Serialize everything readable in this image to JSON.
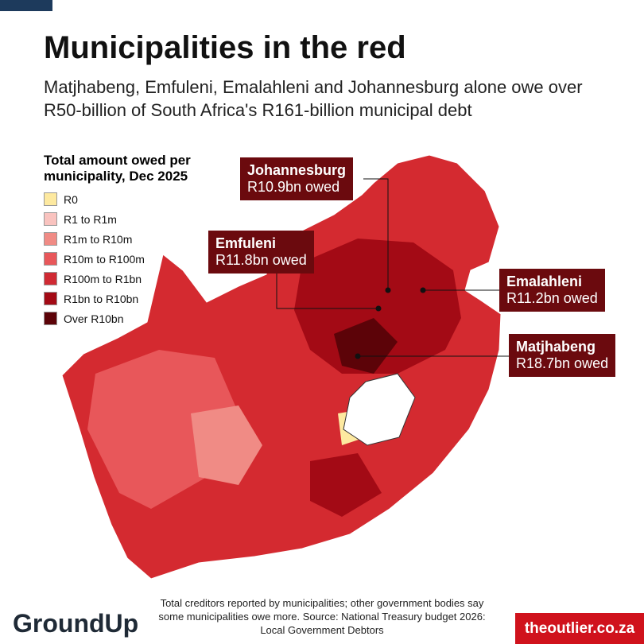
{
  "header": {
    "title": "Municipalities in the red",
    "subtitle": "Matjhabeng, Emfuleni, Emalahleni and Johannesburg alone owe over R50-billion of South Africa's R161-billion municipal debt"
  },
  "legend": {
    "title": "Total amount owed per municipality, Dec 2025",
    "items": [
      {
        "label": "R0",
        "color": "#fde9a0"
      },
      {
        "label": "R1 to R1m",
        "color": "#f9c3bf"
      },
      {
        "label": "R1m to R10m",
        "color": "#f08b85"
      },
      {
        "label": "R10m to R100m",
        "color": "#e8575a"
      },
      {
        "label": "R100m to R1bn",
        "color": "#d02a33"
      },
      {
        "label": "R1bn to R10bn",
        "color": "#a30a15"
      },
      {
        "label": "Over R10bn",
        "color": "#5c0308"
      }
    ]
  },
  "callouts": [
    {
      "name": "Johannesburg",
      "amount": "R10.9bn owed"
    },
    {
      "name": "Emfuleni",
      "amount": "R11.8bn owed"
    },
    {
      "name": "Emalahleni",
      "amount": "R11.2bn owed"
    },
    {
      "name": "Matjhabeng",
      "amount": "R18.7bn owed"
    }
  ],
  "footer": {
    "note": [
      "Total creditors reported by municipalities; other government bodies say",
      "some municipalities owe more. Source: National Treasury budget 2026:",
      "Local Government Debtors"
    ],
    "logo_left": "GroundUp",
    "logo_right": "theoutlier.co.za"
  }
}
